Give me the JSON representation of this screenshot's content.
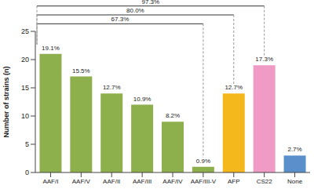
{
  "chart_data": {
    "type": "bar",
    "y_label": "Number of strains (n)",
    "categories": [
      "AAF/I",
      "AAF/V",
      "AAF/II",
      "AAF/III",
      "AAF/IV",
      "AAF/III-V",
      "AFP",
      "CS22",
      "None"
    ],
    "values": [
      21,
      17,
      14,
      12,
      9,
      1,
      14,
      19,
      3
    ],
    "percent_labels": [
      "19.1%",
      "15.5%",
      "12.7%",
      "10.9%",
      "8.2%",
      "0.9%",
      "12.7%",
      "17.3%",
      "2.7%"
    ],
    "colors": [
      "#8db04d",
      "#8db04d",
      "#8db04d",
      "#8db04d",
      "#8db04d",
      "#8db04d",
      "#f5b81c",
      "#f09ac6",
      "#5b8fcc"
    ],
    "ylim": [
      0,
      25
    ],
    "yticks": [
      0,
      5,
      10,
      15,
      20,
      25
    ],
    "grid": false,
    "brackets": [
      {
        "label": "67.3%",
        "from": "AAF/I",
        "to": "AAF/III-V"
      },
      {
        "label": "80.0%",
        "from": "AAF/I",
        "to": "AFP"
      },
      {
        "label": "97.3%",
        "from": "AAF/I",
        "to": "CS22"
      }
    ]
  }
}
